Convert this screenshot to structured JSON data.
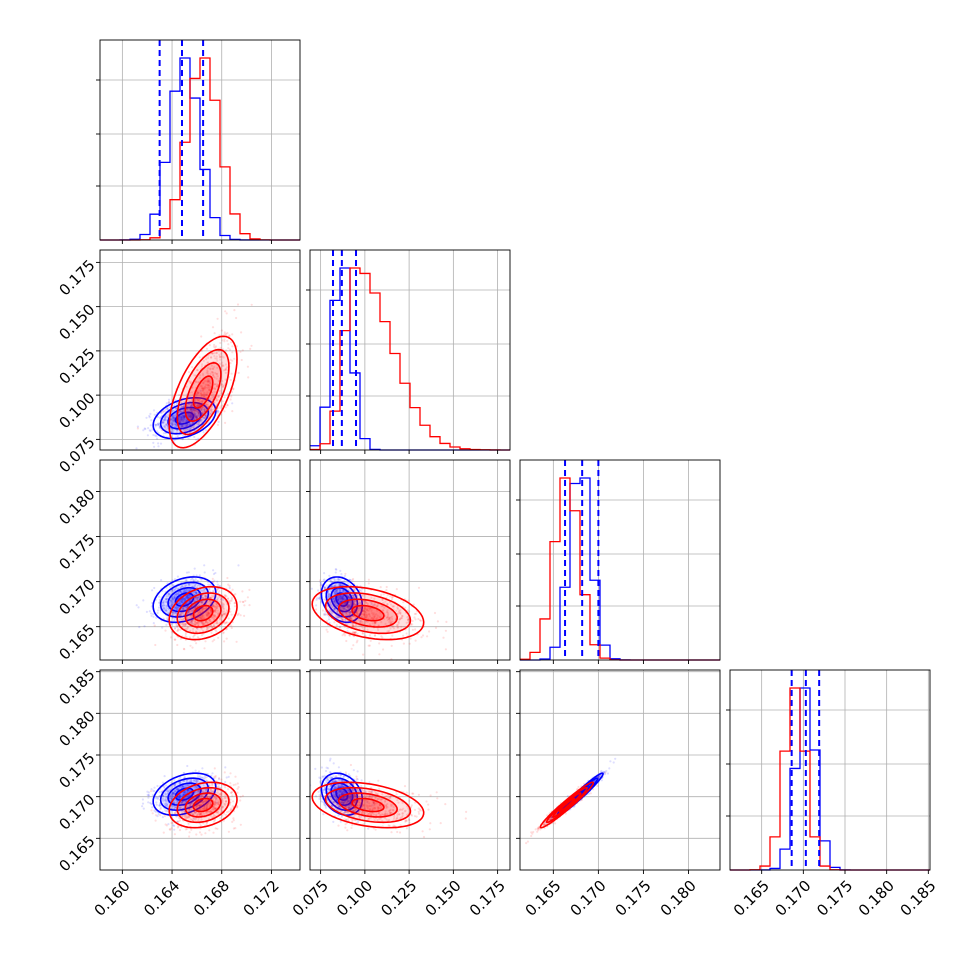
{
  "chart_data": {
    "type": "corner",
    "grid": true,
    "colors": {
      "blue": "#0000ff",
      "red": "#ff0000"
    },
    "series": [
      {
        "color": "#0000ff",
        "means": [
          0.165,
          0.087,
          0.168,
          0.1703
        ],
        "sds": [
          0.0012,
          0.0055,
          0.0012,
          0.0012
        ]
      },
      {
        "color": "#ff0000",
        "means": [
          0.1665,
          0.095,
          0.1665,
          0.169
        ],
        "sds": [
          0.0013,
          0.015,
          0.0014,
          0.0013
        ]
      }
    ],
    "quantile_lines": [
      [
        0.163,
        0.1648,
        0.1665
      ],
      [
        0.082,
        0.087,
        0.095
      ],
      [
        0.1663,
        0.1682,
        0.17
      ],
      [
        0.1686,
        0.1703,
        0.1719
      ]
    ],
    "ranges": [
      [
        0.1582,
        0.1743
      ],
      [
        0.069,
        0.182
      ],
      [
        0.1613,
        0.1835
      ],
      [
        0.1612,
        0.1852
      ]
    ],
    "x_ticks": [
      [
        "0.160",
        "0.164",
        "0.168",
        "0.172"
      ],
      [
        "0.075",
        "0.100",
        "0.125",
        "0.150",
        "0.175"
      ],
      [
        "0.165",
        "0.170",
        "0.175",
        "0.180"
      ],
      [
        "0.165",
        "0.170",
        "0.175",
        "0.180",
        "0.185"
      ]
    ],
    "y_ticks": {
      "row1": [
        "0.075",
        "0.100",
        "0.125",
        "0.150",
        "0.175"
      ],
      "row2": [
        "0.165",
        "0.170",
        "0.175",
        "0.180"
      ],
      "row3": [
        "0.165",
        "0.170",
        "0.175",
        "0.180",
        "0.185"
      ]
    }
  }
}
